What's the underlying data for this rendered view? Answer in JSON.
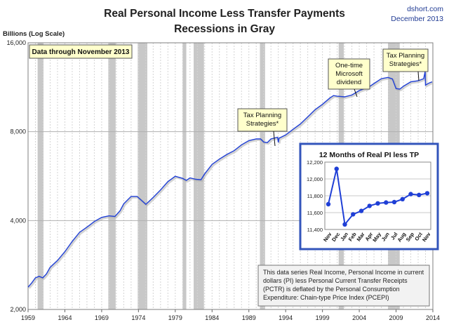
{
  "header": {
    "title_line1": "Real Personal Income Less Transfer Payments",
    "title_line2": "Recessions in Gray",
    "source": "dshort.com",
    "date": "December 2013",
    "y_unit": "Billions (Log Scale)"
  },
  "chart_data": [
    {
      "type": "line",
      "ylabel": "Billions (Log Scale)",
      "yscale": "log",
      "ylim": [
        2000,
        16000
      ],
      "y_ticks": [
        2000,
        4000,
        8000,
        16000
      ],
      "y_tick_labels": [
        "2,000",
        "4,000",
        "8,000",
        "16,000"
      ],
      "xlim": [
        1959,
        2014
      ],
      "x_ticks": [
        1959,
        1964,
        1969,
        1974,
        1979,
        1984,
        1989,
        1994,
        1999,
        2004,
        2009,
        2014
      ],
      "x_tick_labels": [
        "1959",
        "1964",
        "1969",
        "1974",
        "1979",
        "1984",
        "1989",
        "1994",
        "1999",
        "2004",
        "2009",
        "2014"
      ],
      "grid": true,
      "color": "#1f3fd6",
      "recession_color": "#c8c8c8",
      "recessions": [
        [
          1960.3,
          1961.1
        ],
        [
          1969.9,
          1970.9
        ],
        [
          1973.9,
          1975.2
        ],
        [
          1980.0,
          1980.5
        ],
        [
          1981.5,
          1982.9
        ],
        [
          1990.5,
          1991.2
        ],
        [
          2001.2,
          2001.9
        ],
        [
          2007.9,
          2009.5
        ]
      ],
      "series": [
        {
          "x": [
            1959.0,
            1959.5,
            1960.0,
            1960.5,
            1961.0,
            1961.5,
            1962.0,
            1963.0,
            1964.0,
            1965.0,
            1966.0,
            1967.0,
            1968.0,
            1969.0,
            1970.0,
            1970.8,
            1971.5,
            1972.0,
            1973.0,
            1973.8,
            1974.5,
            1975.0,
            1976.0,
            1977.0,
            1978.0,
            1979.0,
            1980.0,
            1980.5,
            1981.0,
            1981.8,
            1982.5,
            1983.0,
            1984.0,
            1985.0,
            1986.0,
            1987.0,
            1988.0,
            1989.0,
            1990.0,
            1990.6,
            1991.0,
            1991.5,
            1992.0,
            1992.9,
            1993.0,
            1993.1,
            1994.0,
            1995.0,
            1996.0,
            1997.0,
            1998.0,
            1999.0,
            2000.0,
            2000.5,
            2001.0,
            2002.0,
            2003.0,
            2004.0,
            2004.8,
            2004.9,
            2005.0,
            2006.0,
            2007.0,
            2007.9,
            2008.5,
            2009.0,
            2009.5,
            2010.0,
            2011.0,
            2012.0,
            2012.75,
            2012.95,
            2013.0,
            2013.5,
            2013.9
          ],
          "y": [
            2380,
            2460,
            2560,
            2590,
            2560,
            2640,
            2780,
            2930,
            3140,
            3400,
            3650,
            3800,
            3970,
            4100,
            4150,
            4130,
            4320,
            4560,
            4830,
            4830,
            4660,
            4540,
            4790,
            5080,
            5420,
            5650,
            5560,
            5470,
            5580,
            5520,
            5500,
            5760,
            6200,
            6460,
            6700,
            6900,
            7220,
            7460,
            7560,
            7560,
            7380,
            7350,
            7560,
            7660,
            7360,
            7600,
            7800,
            8150,
            8500,
            8980,
            9500,
            9900,
            10400,
            10600,
            10550,
            10500,
            10650,
            11030,
            11200,
            11700,
            11200,
            11650,
            12100,
            12220,
            12080,
            11200,
            11150,
            11400,
            11800,
            11900,
            12100,
            12800,
            11500,
            11700,
            11800
          ]
        }
      ],
      "annotations": [
        {
          "text": "Data through November 2013"
        },
        {
          "text": "Tax Planning\nStrategies*"
        },
        {
          "text": "One-time\nMicrosoft\ndividend"
        },
        {
          "text": "Tax Planning\nStrategies*"
        },
        {
          "text": "This data series  Real Income, Personal Income in current dollars  (PI) less Personal Current Transfer Receipts (PCTR) is deflated by the Personal Consumption Expenditure: Chain-type Price Index (PCEPI)"
        }
      ]
    },
    {
      "type": "line",
      "title": "12 Months of Real PI less TP",
      "categories": [
        "Nov",
        "Dec",
        "Jan",
        "Feb",
        "Mar",
        "Apr",
        "May",
        "Jun",
        "Jul",
        "Aug",
        "Sep",
        "Oct",
        "Nov"
      ],
      "ylim": [
        11400,
        12200
      ],
      "y_ticks": [
        11400,
        11600,
        11800,
        12000,
        12200
      ],
      "y_tick_labels": [
        "11,400",
        "11,600",
        "11,800",
        "12,000",
        "12,200"
      ],
      "grid": true,
      "color": "#1f3fd6",
      "series": [
        {
          "values": [
            11700,
            12120,
            11460,
            11580,
            11620,
            11680,
            11710,
            11720,
            11725,
            11760,
            11820,
            11810,
            11830
          ]
        }
      ]
    }
  ]
}
